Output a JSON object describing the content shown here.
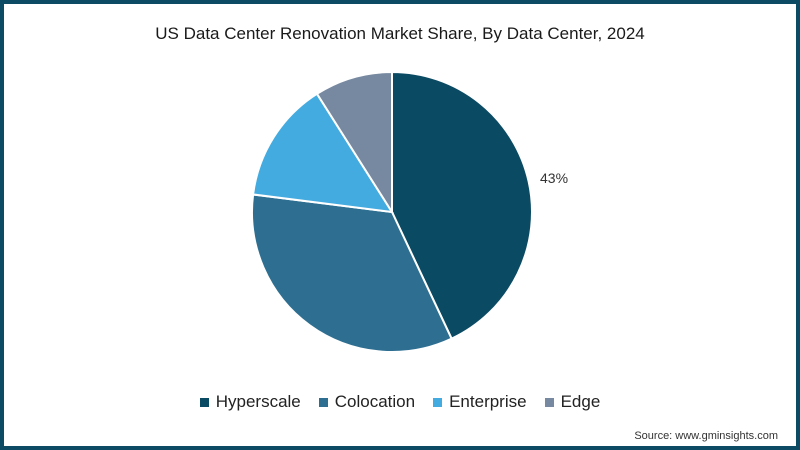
{
  "chart_data": {
    "type": "pie",
    "title": "US Data Center Renovation Market Share, By Data Center, 2024",
    "categories": [
      "Hyperscale",
      "Colocation",
      "Enterprise",
      "Edge"
    ],
    "values": [
      43,
      34,
      14,
      9
    ],
    "colors": [
      "#0b4a63",
      "#2e6f91",
      "#44abe0",
      "#7689a0"
    ],
    "data_labels": [
      {
        "category": "Hyperscale",
        "text": "43%"
      }
    ],
    "legend_position": "bottom",
    "start_angle": "12 o'clock, clockwise"
  },
  "title": "US Data Center Renovation Market Share, By Data Center, 2024",
  "legend": {
    "items": [
      {
        "label": "Hyperscale",
        "color": "#0b4a63"
      },
      {
        "label": "Colocation",
        "color": "#2e6f91"
      },
      {
        "label": "Enterprise",
        "color": "#44abe0"
      },
      {
        "label": "Edge",
        "color": "#7689a0"
      }
    ]
  },
  "label_hyperscale": "43%",
  "source": "Source: www.gminsights.com",
  "colors": {
    "border": "#0d4a63"
  }
}
